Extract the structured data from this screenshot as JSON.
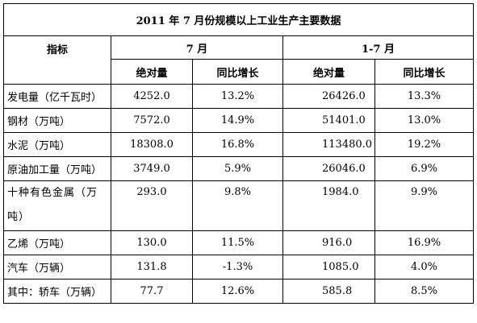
{
  "title": "2011 年 7 月份规模以上工业生产主要数据",
  "header": {
    "indicator": "指标",
    "month": "7 月",
    "cumulative": "1-7 月",
    "absolute": "绝对量",
    "yoy": "同比增长"
  },
  "rows": [
    {
      "name": "发电量（亿千瓦时）",
      "m_abs": "4252.0",
      "m_yoy": "13.2%",
      "c_abs": "26426.0",
      "c_yoy": "13.3%"
    },
    {
      "name": "钢材（万吨）",
      "m_abs": "7572.0",
      "m_yoy": "14.9%",
      "c_abs": "51401.0",
      "c_yoy": "13.0%"
    },
    {
      "name": "水泥（万吨）",
      "m_abs": "18308.0",
      "m_yoy": "16.8%",
      "c_abs": "113480.0",
      "c_yoy": "19.2%"
    },
    {
      "name": "原油加工量（万吨）",
      "m_abs": "3749.0",
      "m_yoy": "5.9%",
      "c_abs": "26046.0",
      "c_yoy": "6.9%"
    },
    {
      "name": "十种有色金属（万吨）",
      "m_abs": "293.0",
      "m_yoy": "9.8%",
      "c_abs": "1984.0",
      "c_yoy": "9.9%"
    },
    {
      "name": "乙烯（万吨）",
      "m_abs": "130.0",
      "m_yoy": "11.5%",
      "c_abs": "916.0",
      "c_yoy": "16.9%"
    },
    {
      "name": "汽车（万辆）",
      "m_abs": "131.8",
      "m_yoy": "-1.3%",
      "c_abs": "1085.0",
      "c_yoy": "4.0%"
    },
    {
      "name": "其中：轿车（万辆）",
      "m_abs": "77.7",
      "m_yoy": "12.6%",
      "c_abs": "585.8",
      "c_yoy": "8.5%"
    }
  ]
}
